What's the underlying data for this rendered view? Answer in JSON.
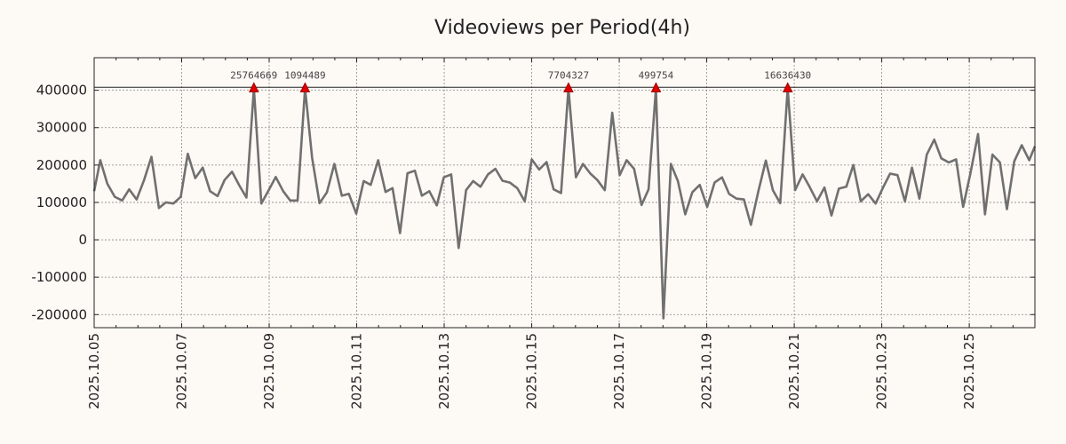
{
  "chart_data": {
    "type": "line",
    "title": "Videoviews per Period(4h)",
    "xlabel": "",
    "ylabel": "",
    "x_range": [
      0.0,
      21.5
    ],
    "x_ticks": [
      {
        "x": 0.0,
        "label": "2025.10.05"
      },
      {
        "x": 2.0,
        "label": "2025.10.07"
      },
      {
        "x": 4.0,
        "label": "2025.10.09"
      },
      {
        "x": 6.0,
        "label": "2025.10.11"
      },
      {
        "x": 8.0,
        "label": "2025.10.13"
      },
      {
        "x": 10.0,
        "label": "2025.10.15"
      },
      {
        "x": 12.0,
        "label": "2025.10.17"
      },
      {
        "x": 14.0,
        "label": "2025.10.19"
      },
      {
        "x": 16.0,
        "label": "2025.10.21"
      },
      {
        "x": 18.0,
        "label": "2025.10.23"
      },
      {
        "x": 20.0,
        "label": "2025.10.25"
      }
    ],
    "ylim": [
      -235000,
      487000
    ],
    "y_ticks": [
      {
        "value": 400000,
        "label": "400000"
      },
      {
        "value": 300000,
        "label": "300000"
      },
      {
        "value": 200000,
        "label": "200000"
      },
      {
        "value": 100000,
        "label": "100000"
      },
      {
        "value": 0,
        "label": "0"
      },
      {
        "value": -100000,
        "label": "-100000"
      },
      {
        "value": -200000,
        "label": "-200000"
      }
    ],
    "grid": true,
    "threshold": 408000,
    "series": [
      {
        "name": "videoviews",
        "x": [
          -0.03,
          0.14,
          0.3,
          0.47,
          0.64,
          0.8,
          0.97,
          1.14,
          1.31,
          1.48,
          1.64,
          1.81,
          1.98,
          2.14,
          2.31,
          2.48,
          2.65,
          2.82,
          2.98,
          3.15,
          3.32,
          3.48,
          3.65,
          3.82,
          3.99,
          4.15,
          4.32,
          4.48,
          4.65,
          4.82,
          4.98,
          5.15,
          5.32,
          5.49,
          5.66,
          5.82,
          5.99,
          6.16,
          6.32,
          6.49,
          6.66,
          6.82,
          6.99,
          7.16,
          7.33,
          7.49,
          7.66,
          7.83,
          7.99,
          8.16,
          8.33,
          8.5,
          8.66,
          8.83,
          9.0,
          9.17,
          9.33,
          9.5,
          9.67,
          9.84,
          10.0,
          10.17,
          10.34,
          10.5,
          10.67,
          10.84,
          11.01,
          11.17,
          11.34,
          11.5,
          11.67,
          11.84,
          12.01,
          12.17,
          12.34,
          12.51,
          12.67,
          12.84,
          13.01,
          13.18,
          13.34,
          13.51,
          13.67,
          13.84,
          14.01,
          14.18,
          14.35,
          14.51,
          14.68,
          14.85,
          15.01,
          15.18,
          15.35,
          15.51,
          15.68,
          15.85,
          16.02,
          16.19,
          16.35,
          16.52,
          16.69,
          16.85,
          17.02,
          17.19,
          17.35,
          17.52,
          17.69,
          17.86,
          18.03,
          18.19,
          18.36,
          18.53,
          18.69,
          18.86,
          19.03,
          19.2,
          19.36,
          19.53,
          19.7,
          19.86,
          20.03,
          20.2,
          20.36,
          20.53,
          20.7,
          20.86,
          21.03,
          21.2,
          21.37,
          21.53
        ],
        "values": [
          130000,
          213000,
          150000,
          115000,
          105000,
          135000,
          108000,
          160000,
          222000,
          85000,
          100000,
          97000,
          115000,
          230000,
          165000,
          193000,
          130000,
          117000,
          160000,
          182000,
          145000,
          113000,
          405000,
          97000,
          133000,
          168000,
          130000,
          105000,
          105000,
          405000,
          220000,
          98000,
          127000,
          203000,
          118000,
          123000,
          70000,
          157000,
          147000,
          213000,
          128000,
          138000,
          18000,
          178000,
          185000,
          118000,
          130000,
          92000,
          167000,
          175000,
          -22000,
          133000,
          157000,
          142000,
          175000,
          190000,
          158000,
          153000,
          138000,
          103000,
          215000,
          188000,
          208000,
          135000,
          125000,
          405000,
          167000,
          203000,
          177000,
          160000,
          133000,
          340000,
          173000,
          213000,
          190000,
          93000,
          135000,
          405000,
          -210000,
          203000,
          157000,
          68000,
          127000,
          147000,
          88000,
          153000,
          167000,
          123000,
          110000,
          108000,
          40000,
          130000,
          212000,
          133000,
          98000,
          405000,
          133000,
          175000,
          142000,
          103000,
          140000,
          65000,
          137000,
          142000,
          200000,
          103000,
          122000,
          97000,
          140000,
          177000,
          173000,
          103000,
          193000,
          110000,
          228000,
          268000,
          218000,
          207000,
          215000,
          88000,
          180000,
          283000,
          68000,
          228000,
          207000,
          82000,
          210000,
          253000,
          213000,
          250000
        ]
      }
    ],
    "peaks": [
      {
        "x": 3.65,
        "value": 405000,
        "label": "25764669"
      },
      {
        "x": 4.82,
        "value": 405000,
        "label": "1094489"
      },
      {
        "x": 10.84,
        "value": 405000,
        "label": "7704327"
      },
      {
        "x": 12.84,
        "value": 405000,
        "label": "499754"
      },
      {
        "x": 15.85,
        "value": 405000,
        "label": "16636430"
      }
    ]
  }
}
